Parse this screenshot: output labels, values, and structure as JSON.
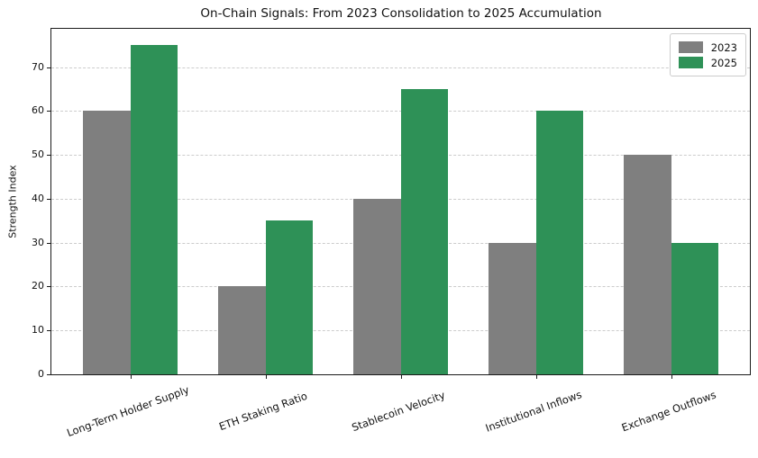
{
  "chart_data": {
    "type": "bar",
    "title": "On-Chain Signals: From 2023 Consolidation to 2025 Accumulation",
    "xlabel": "",
    "ylabel": "Strength Index",
    "categories": [
      "Long-Term Holder Supply",
      "ETH Staking Ratio",
      "Stablecoin Velocity",
      "Institutional Inflows",
      "Exchange Outflows"
    ],
    "series": [
      {
        "name": "2023",
        "color": "#7f7f7f",
        "values": [
          60,
          20,
          40,
          30,
          50
        ]
      },
      {
        "name": "2025",
        "color": "#2e9157",
        "values": [
          75,
          35,
          65,
          60,
          30
        ]
      }
    ],
    "yticks": [
      0,
      10,
      20,
      30,
      40,
      50,
      60,
      70
    ],
    "ylim": [
      0,
      78.75
    ],
    "grid": "horizontal-dashed",
    "legend_position": "top-right",
    "x_label_rotation_deg": 20
  }
}
